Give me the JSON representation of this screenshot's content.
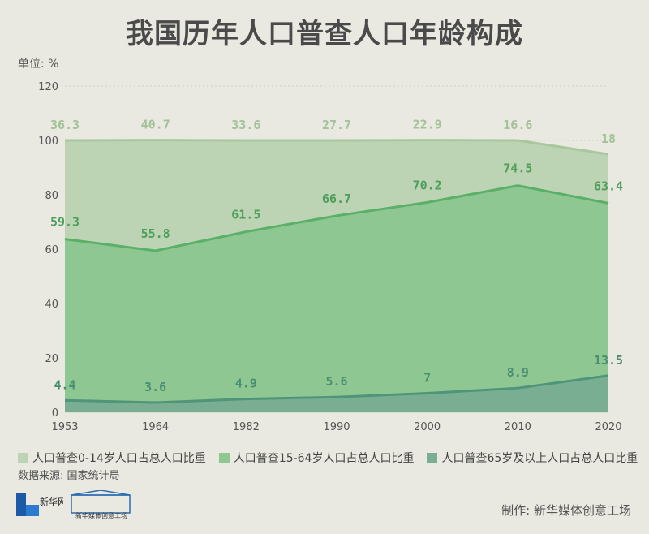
{
  "header": {
    "title": "我国历年人口普查人口年龄构成",
    "unit": "单位: %"
  },
  "footer": {
    "source": "数据来源: 国家统计局",
    "credit": "制作: 新华媒体创意工场",
    "logo_news": "新华网",
    "logo_creative": "新华媒体创意工场"
  },
  "colors": {
    "background": "#e9e8e1",
    "young": "#bdd4b4",
    "young_line": "#a8c79e",
    "young_label": "#a3c298",
    "working": "#8fc792",
    "working_line": "#5ab069",
    "working_label": "#4e9e5c",
    "elderly": "#7aae92",
    "elderly_line": "#4f957a",
    "elderly_label": "#4a8e72"
  },
  "chart_data": {
    "type": "area",
    "stacked": true,
    "title": "我国历年人口普查人口年龄构成",
    "ylabel": "单位: %",
    "ylim": [
      0,
      120
    ],
    "yticks": [
      0,
      20,
      40,
      60,
      80,
      100,
      120
    ],
    "grid": true,
    "legend_position": "bottom",
    "categories": [
      "1953",
      "1964",
      "1982",
      "1990",
      "2000",
      "2010",
      "2020"
    ],
    "series": [
      {
        "name": "人口普查65岁及以上人口占总人口比重",
        "values": [
          4.4,
          3.6,
          4.9,
          5.6,
          7,
          8.9,
          13.5
        ],
        "labels": [
          "4.4",
          "3.6",
          "4.9",
          "5.6",
          "7",
          "8.9",
          "13.5"
        ]
      },
      {
        "name": "人口普查15-64岁人口占总人口比重",
        "values": [
          59.3,
          55.8,
          61.5,
          66.7,
          70.2,
          74.5,
          63.4
        ],
        "labels": [
          "59.3",
          "55.8",
          "61.5",
          "66.7",
          "70.2",
          "74.5",
          "63.4"
        ]
      },
      {
        "name": "人口普查0-14岁人口占总人口比重",
        "values": [
          36.3,
          40.7,
          33.6,
          27.7,
          22.9,
          16.6,
          18
        ],
        "labels": [
          "36.3",
          "40.7",
          "33.6",
          "27.7",
          "22.9",
          "16.6",
          "18"
        ]
      }
    ],
    "legend_order": [
      2,
      1,
      0
    ]
  }
}
